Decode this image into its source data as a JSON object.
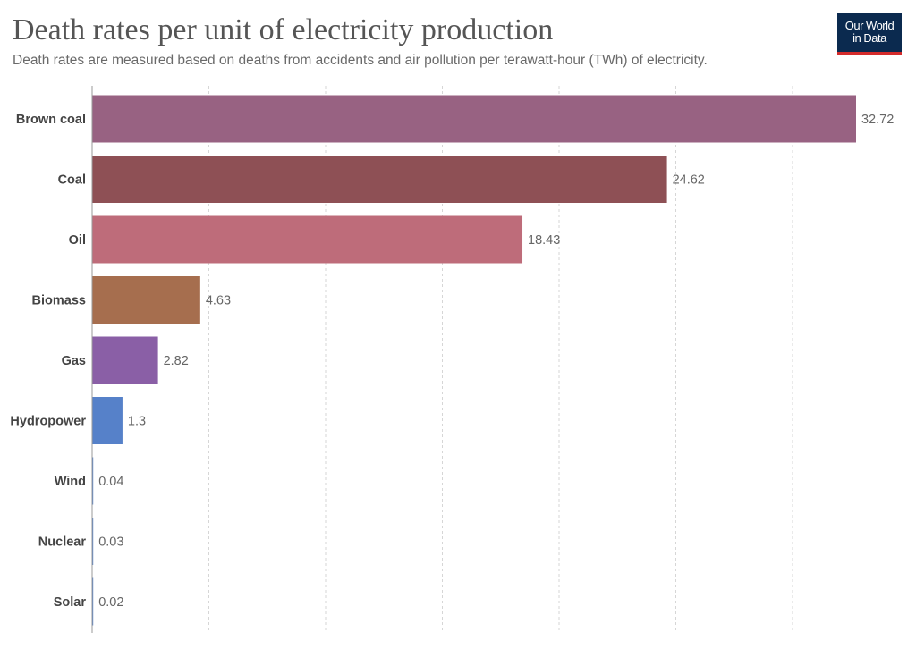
{
  "header": {
    "title": "Death rates per unit of electricity production",
    "subtitle": "Death rates are measured based on deaths from accidents and air pollution per terawatt-hour (TWh) of electricity.",
    "logo_line1": "Our World",
    "logo_line2": "in Data"
  },
  "chart_data": {
    "type": "bar",
    "orientation": "horizontal",
    "title": "Death rates per unit of electricity production",
    "subtitle": "Death rates are measured based on deaths from accidents and air pollution per terawatt-hour (TWh) of electricity.",
    "categories": [
      "Brown coal",
      "Coal",
      "Oil",
      "Biomass",
      "Gas",
      "Hydropower",
      "Wind",
      "Nuclear",
      "Solar"
    ],
    "values": [
      32.72,
      24.62,
      18.43,
      4.63,
      2.82,
      1.3,
      0.04,
      0.03,
      0.02
    ],
    "value_labels": [
      "32.72",
      "24.62",
      "18.43",
      "4.63",
      "2.82",
      "1.3",
      "0.04",
      "0.03",
      "0.02"
    ],
    "colors": [
      "#986282",
      "#8e5055",
      "#be6c7a",
      "#a66e4e",
      "#8a5fa6",
      "#5681c9",
      "#5681c9",
      "#5681c9",
      "#5681c9"
    ],
    "xlim": [
      0,
      35
    ],
    "grid": true,
    "grid_style": "dashed vertical"
  }
}
